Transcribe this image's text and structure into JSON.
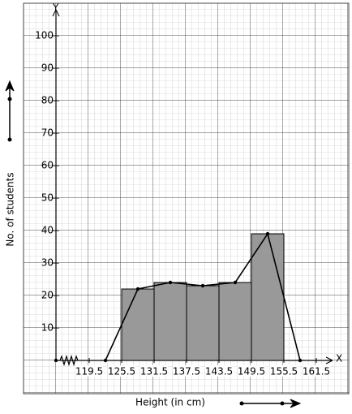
{
  "chart_data": {
    "type": "histogram",
    "x_axis_letter": "X",
    "y_axis_letter": "Y",
    "xlabel": "Height (in cm)",
    "ylabel": "No. of students",
    "bins": [
      125.5,
      131.5,
      137.5,
      143.5,
      149.5,
      155.5
    ],
    "values": [
      22,
      24,
      23,
      24,
      39
    ],
    "color": "#999999",
    "polygon": {
      "x": [
        122.5,
        128.5,
        134.5,
        140.5,
        146.5,
        152.5,
        158.5
      ],
      "values": [
        0,
        22,
        24,
        23,
        24,
        39,
        0
      ],
      "color": "#000000"
    },
    "xlim": [
      116.5,
      164.5
    ],
    "xticks": [
      119.5,
      125.5,
      131.5,
      137.5,
      143.5,
      149.5,
      155.5,
      161.5
    ],
    "ylim": [
      0,
      108
    ],
    "yticks": [
      10,
      20,
      30,
      40,
      50,
      60,
      70,
      80,
      90,
      100
    ]
  }
}
